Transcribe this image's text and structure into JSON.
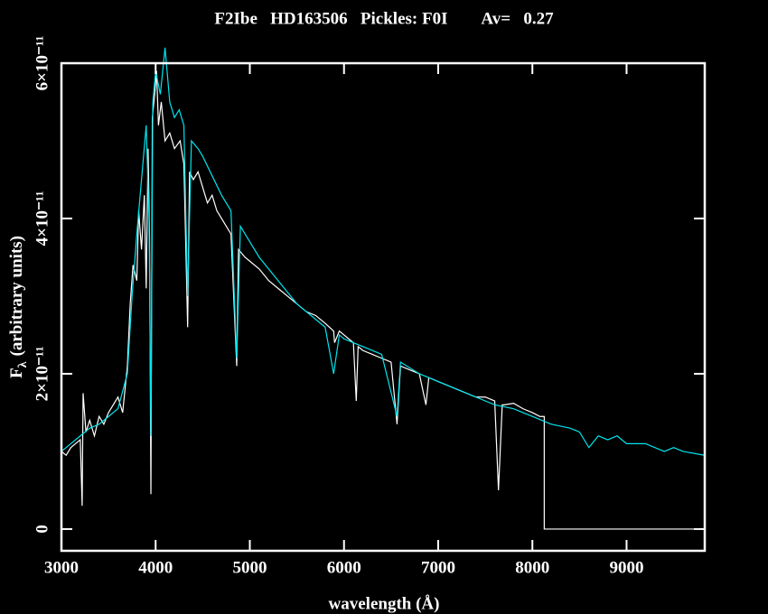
{
  "chart_data": {
    "type": "line",
    "title": "F2Ibe   HD163506   Pickles: F0I        Av=   0.27",
    "x_label": "wavelength (Å)",
    "y_label_symbol": "F",
    "y_label_subscript": "λ",
    "y_label_text": "(arbitrary units)",
    "xlim": [
      3000,
      9830
    ],
    "ylim": [
      -2.8e-12,
      6e-11
    ],
    "xticks": [
      3000,
      4000,
      5000,
      6000,
      7000,
      8000,
      9000
    ],
    "yticks": [
      0,
      {
        "value": 2e-11,
        "label": "2×10⁻¹¹"
      },
      {
        "value": 4e-11,
        "label": "4×10⁻¹¹"
      },
      {
        "value": 6e-11,
        "label": "6×10⁻¹¹"
      }
    ],
    "series": [
      {
        "color": "#ffffff",
        "x": [
          3000,
          3050,
          3100,
          3150,
          3200,
          3220,
          3230,
          3260,
          3300,
          3350,
          3400,
          3450,
          3500,
          3550,
          3600,
          3650,
          3700,
          3730,
          3760,
          3800,
          3820,
          3850,
          3880,
          3900,
          3920,
          3935,
          3950,
          3965,
          3990,
          4010,
          4030,
          4060,
          4100,
          4150,
          4200,
          4260,
          4300,
          4340,
          4360,
          4400,
          4450,
          4500,
          4550,
          4600,
          4650,
          4700,
          4750,
          4800,
          4861,
          4880,
          4950,
          5000,
          5100,
          5200,
          5300,
          5400,
          5500,
          5600,
          5700,
          5800,
          5890,
          5900,
          5950,
          6000,
          6100,
          6130,
          6150,
          6200,
          6300,
          6400,
          6500,
          6563,
          6600,
          6700,
          6800,
          6870,
          6900,
          7000,
          7100,
          7200,
          7300,
          7400,
          7500,
          7600,
          7640,
          7680,
          7700,
          7800,
          7900,
          8000,
          8080,
          8126,
          8126,
          9830
        ],
        "values": [
          1e-11,
          9.5e-12,
          1.05e-11,
          1.1e-11,
          1.15e-11,
          3e-12,
          1.75e-11,
          1.25e-11,
          1.4e-11,
          1.2e-11,
          1.45e-11,
          1.35e-11,
          1.5e-11,
          1.6e-11,
          1.7e-11,
          1.5e-11,
          2.1e-11,
          2.9e-11,
          3.4e-11,
          3.2e-11,
          4.1e-11,
          3.6e-11,
          4.3e-11,
          3.1e-11,
          4.9e-11,
          3.8e-11,
          4.5e-12,
          5.3e-11,
          5.6e-11,
          5.9e-11,
          5.2e-11,
          5.5e-11,
          5e-11,
          5.1e-11,
          4.9e-11,
          5e-11,
          4.7e-11,
          2.6e-11,
          4.6e-11,
          4.5e-11,
          4.6e-11,
          4.4e-11,
          4.2e-11,
          4.3e-11,
          4.1e-11,
          4e-11,
          3.9e-11,
          3.8e-11,
          2.1e-11,
          3.6e-11,
          3.5e-11,
          3.45e-11,
          3.35e-11,
          3.2e-11,
          3.1e-11,
          3e-11,
          2.9e-11,
          2.8e-11,
          2.75e-11,
          2.65e-11,
          2.55e-11,
          2.4e-11,
          2.55e-11,
          2.5e-11,
          2.4e-11,
          1.65e-11,
          2.35e-11,
          2.3e-11,
          2.25e-11,
          2.2e-11,
          2.15e-11,
          1.35e-11,
          2.1e-11,
          2.05e-11,
          2e-11,
          1.6e-11,
          1.95e-11,
          1.9e-11,
          1.85e-11,
          1.8e-11,
          1.75e-11,
          1.7e-11,
          1.7e-11,
          1.65e-11,
          5e-12,
          1.6e-11,
          1.6e-11,
          1.62e-11,
          1.55e-11,
          1.5e-11,
          1.45e-11,
          1.45e-11,
          0,
          0
        ]
      },
      {
        "color": "#00e5ee",
        "x": [
          3000,
          3100,
          3200,
          3300,
          3400,
          3500,
          3600,
          3700,
          3750,
          3800,
          3850,
          3900,
          3930,
          3950,
          3970,
          4000,
          4050,
          4100,
          4150,
          4200,
          4250,
          4300,
          4340,
          4380,
          4450,
          4500,
          4600,
          4700,
          4800,
          4861,
          4900,
          5000,
          5100,
          5200,
          5300,
          5400,
          5500,
          5600,
          5700,
          5800,
          5890,
          5950,
          6000,
          6200,
          6400,
          6563,
          6600,
          6800,
          7000,
          7200,
          7400,
          7600,
          7800,
          8000,
          8200,
          8400,
          8500,
          8600,
          8700,
          8800,
          8900,
          9000,
          9200,
          9400,
          9500,
          9600,
          9830
        ],
        "values": [
          1e-11,
          1.1e-11,
          1.2e-11,
          1.3e-11,
          1.35e-11,
          1.45e-11,
          1.55e-11,
          2e-11,
          3e-11,
          3.8e-11,
          4.5e-11,
          5.2e-11,
          4e-11,
          1.2e-11,
          5.5e-11,
          5.9e-11,
          5.6e-11,
          6.2e-11,
          5.5e-11,
          5.3e-11,
          5.4e-11,
          5.2e-11,
          3e-11,
          5e-11,
          4.9e-11,
          4.8e-11,
          4.55e-11,
          4.3e-11,
          4.1e-11,
          2.2e-11,
          3.9e-11,
          3.7e-11,
          3.5e-11,
          3.35e-11,
          3.2e-11,
          3.05e-11,
          2.9e-11,
          2.8e-11,
          2.7e-11,
          2.6e-11,
          2e-11,
          2.5e-11,
          2.45e-11,
          2.35e-11,
          2.25e-11,
          1.45e-11,
          2.15e-11,
          2e-11,
          1.9e-11,
          1.8e-11,
          1.7e-11,
          1.6e-11,
          1.55e-11,
          1.45e-11,
          1.35e-11,
          1.3e-11,
          1.25e-11,
          1.05e-11,
          1.2e-11,
          1.15e-11,
          1.2e-11,
          1.1e-11,
          1.1e-11,
          1e-11,
          1.05e-11,
          1e-11,
          9.5e-12
        ]
      }
    ]
  }
}
